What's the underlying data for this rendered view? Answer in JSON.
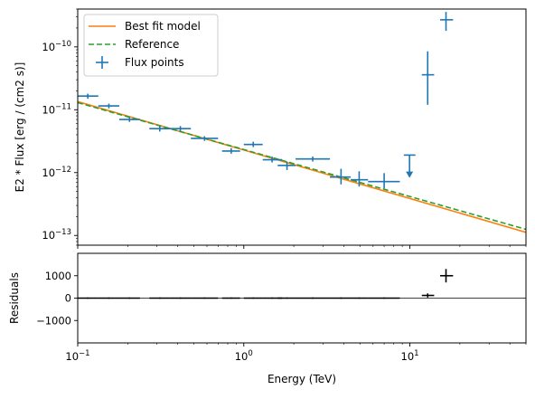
{
  "chart_data": [
    {
      "type": "line",
      "panel": "flux",
      "xlabel": "",
      "ylabel": "E2 * Flux [erg / (cm2 s)]",
      "xscale": "log",
      "yscale": "log",
      "xlim": [
        0.1,
        50
      ],
      "ylim": [
        7e-14,
        4e-10
      ],
      "yticks": [
        {
          "v": 1e-13,
          "mant": "10",
          "exp": "−13"
        },
        {
          "v": 1e-12,
          "mant": "10",
          "exp": "−12"
        },
        {
          "v": 1e-11,
          "mant": "10",
          "exp": "−11"
        },
        {
          "v": 1e-10,
          "mant": "10",
          "exp": "−10"
        }
      ],
      "legend": {
        "placement": "upper-left",
        "entries": [
          {
            "label": "Best fit model",
            "style": "line",
            "color": "#ff7f0e"
          },
          {
            "label": "Reference",
            "style": "dashed",
            "color": "#2ca02c"
          },
          {
            "label": "Flux points",
            "style": "errorbar",
            "color": "#1f77b4"
          }
        ]
      },
      "series": [
        {
          "name": "Best fit model",
          "kind": "line",
          "color": "#ff7f0e",
          "x": [
            0.1,
            50
          ],
          "y": [
            1.35e-11,
            1.12e-13
          ]
        },
        {
          "name": "Reference",
          "kind": "dashed",
          "color": "#2ca02c",
          "x": [
            0.1,
            50
          ],
          "y": [
            1.3e-11,
            1.25e-13
          ]
        },
        {
          "name": "Flux points",
          "kind": "errorbar",
          "color": "#1f77b4",
          "points": [
            {
              "x": 0.115,
              "xlo": 0.1,
              "xhi": 0.133,
              "y": 1.65e-11,
              "ylo": 1.5e-11,
              "yhi": 1.8e-11
            },
            {
              "x": 0.154,
              "xlo": 0.133,
              "xhi": 0.178,
              "y": 1.15e-11,
              "ylo": 1.05e-11,
              "yhi": 1.25e-11
            },
            {
              "x": 0.205,
              "xlo": 0.178,
              "xhi": 0.237,
              "y": 7e-12,
              "ylo": 6.4e-12,
              "yhi": 7.6e-12
            },
            {
              "x": 0.312,
              "xlo": 0.27,
              "xhi": 0.36,
              "y": 5e-12,
              "ylo": 4.5e-12,
              "yhi": 5.5e-12
            },
            {
              "x": 0.415,
              "xlo": 0.36,
              "xhi": 0.48,
              "y": 5e-12,
              "ylo": 4.5e-12,
              "yhi": 5.5e-12
            },
            {
              "x": 0.58,
              "xlo": 0.48,
              "xhi": 0.7,
              "y": 3.5e-12,
              "ylo": 3.2e-12,
              "yhi": 3.8e-12
            },
            {
              "x": 0.84,
              "xlo": 0.74,
              "xhi": 0.95,
              "y": 2.2e-12,
              "ylo": 2e-12,
              "yhi": 2.45e-12
            },
            {
              "x": 1.14,
              "xlo": 1.0,
              "xhi": 1.3,
              "y": 2.8e-12,
              "ylo": 2.55e-12,
              "yhi": 3.1e-12
            },
            {
              "x": 1.48,
              "xlo": 1.3,
              "xhi": 1.7,
              "y": 1.6e-12,
              "ylo": 1.45e-12,
              "yhi": 1.8e-12
            },
            {
              "x": 1.82,
              "xlo": 1.6,
              "xhi": 2.05,
              "y": 1.3e-12,
              "ylo": 1.1e-12,
              "yhi": 1.5e-12
            },
            {
              "x": 2.6,
              "xlo": 2.05,
              "xhi": 3.3,
              "y": 1.65e-12,
              "ylo": 1.5e-12,
              "yhi": 1.8e-12
            },
            {
              "x": 3.85,
              "xlo": 3.3,
              "xhi": 4.4,
              "y": 8.5e-13,
              "ylo": 6.5e-13,
              "yhi": 1.15e-12
            },
            {
              "x": 4.95,
              "xlo": 4.4,
              "xhi": 5.6,
              "y": 7.7e-13,
              "ylo": 6e-13,
              "yhi": 1.05e-12
            },
            {
              "x": 7.0,
              "xlo": 5.6,
              "xhi": 8.7,
              "y": 7.2e-13,
              "ylo": 5.6e-13,
              "yhi": 9.8e-13
            },
            {
              "x": 12.8,
              "xlo": 11.8,
              "xhi": 14.0,
              "y": 3.6e-11,
              "ylo": 1.2e-11,
              "yhi": 8.5e-11
            },
            {
              "x": 16.5,
              "xlo": 15.2,
              "xhi": 18.2,
              "y": 2.7e-10,
              "ylo": 1.8e-10,
              "yhi": 3.6e-10
            }
          ],
          "upper_limits": [
            {
              "x": 9.95,
              "xlo": 9.2,
              "xhi": 10.8,
              "y": 1.9e-12,
              "arrow_to": 8.5e-13
            }
          ]
        }
      ]
    },
    {
      "type": "scatter",
      "panel": "residuals",
      "xlabel": "Energy (TeV)",
      "ylabel": "Residuals",
      "xscale": "log",
      "xlim": [
        0.1,
        50
      ],
      "ylim": [
        -2000,
        2000
      ],
      "xticks": [
        {
          "v": 0.1,
          "mant": "10",
          "exp": "−1"
        },
        {
          "v": 1,
          "mant": "10",
          "exp": "0"
        },
        {
          "v": 10,
          "mant": "10",
          "exp": "1"
        }
      ],
      "yticks": [
        {
          "v": -1000,
          "label": "−1000"
        },
        {
          "v": 0,
          "label": "0"
        },
        {
          "v": 1000,
          "label": "1000"
        }
      ],
      "zero_line": true,
      "series": [
        {
          "name": "",
          "kind": "errorbar",
          "color": "#000000",
          "points": [
            {
              "x": 0.115,
              "xlo": 0.1,
              "xhi": 0.133,
              "y": 0,
              "err": 30
            },
            {
              "x": 0.154,
              "xlo": 0.133,
              "xhi": 0.178,
              "y": 0,
              "err": 30
            },
            {
              "x": 0.205,
              "xlo": 0.178,
              "xhi": 0.237,
              "y": 0,
              "err": 30
            },
            {
              "x": 0.312,
              "xlo": 0.27,
              "xhi": 0.36,
              "y": 0,
              "err": 30
            },
            {
              "x": 0.415,
              "xlo": 0.36,
              "xhi": 0.48,
              "y": 0,
              "err": 30
            },
            {
              "x": 0.58,
              "xlo": 0.48,
              "xhi": 0.7,
              "y": 0,
              "err": 30
            },
            {
              "x": 0.84,
              "xlo": 0.74,
              "xhi": 0.95,
              "y": 0,
              "err": 30
            },
            {
              "x": 1.14,
              "xlo": 1.0,
              "xhi": 1.3,
              "y": 0,
              "err": 30
            },
            {
              "x": 1.48,
              "xlo": 1.3,
              "xhi": 1.7,
              "y": 0,
              "err": 30
            },
            {
              "x": 1.82,
              "xlo": 1.6,
              "xhi": 2.05,
              "y": 0,
              "err": 30
            },
            {
              "x": 2.6,
              "xlo": 2.05,
              "xhi": 3.3,
              "y": 0,
              "err": 30
            },
            {
              "x": 3.85,
              "xlo": 3.3,
              "xhi": 4.4,
              "y": 0,
              "err": 30
            },
            {
              "x": 4.95,
              "xlo": 4.4,
              "xhi": 5.6,
              "y": 0,
              "err": 30
            },
            {
              "x": 7.0,
              "xlo": 5.6,
              "xhi": 8.7,
              "y": 0,
              "err": 30
            },
            {
              "x": 12.8,
              "xlo": 11.8,
              "xhi": 14.0,
              "y": 120,
              "err": 90
            },
            {
              "x": 16.5,
              "xlo": 15.2,
              "xhi": 18.2,
              "y": 1000,
              "err": 300
            }
          ]
        }
      ]
    }
  ]
}
